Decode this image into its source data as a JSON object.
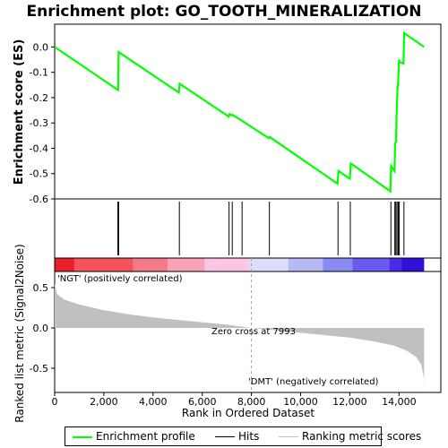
{
  "chart_data": {
    "type": "line",
    "title": "Enrichment plot: GO_TOOTH_MINERALIZATION",
    "es_panel": {
      "ylabel": "Enrichment score (ES)",
      "ylim": [
        -0.6,
        0.09
      ],
      "yticks": [
        0.0,
        -0.1,
        -0.2,
        -0.3,
        -0.4,
        -0.5,
        -0.6
      ],
      "ytick_labels": [
        "0.0",
        "-0.1",
        "-0.2",
        "-0.3",
        "-0.4",
        "-0.5",
        "-0.6"
      ],
      "line_color": "#00ff00",
      "profile_x": [
        0,
        2580,
        2600,
        5050,
        5080,
        7080,
        7110,
        7200,
        7230,
        7600,
        8700,
        8740,
        11500,
        11540,
        12000,
        12040,
        13650,
        13680,
        13820,
        13840,
        13880,
        13900,
        13940,
        13960,
        14000,
        14030,
        14180,
        14210,
        15020
      ],
      "profile_y": [
        0.0,
        -0.17,
        -0.02,
        -0.18,
        -0.145,
        -0.275,
        -0.265,
        -0.27,
        -0.268,
        -0.29,
        -0.36,
        -0.355,
        -0.54,
        -0.49,
        -0.52,
        -0.46,
        -0.57,
        -0.47,
        -0.49,
        -0.38,
        -0.375,
        -0.27,
        -0.16,
        -0.155,
        -0.05,
        -0.06,
        -0.065,
        0.055,
        0.0
      ]
    },
    "hits_panel": {
      "hit_positions": [
        2570,
        2600,
        5070,
        7090,
        7220,
        7620,
        8730,
        11520,
        12020,
        13670,
        13830,
        13870,
        13920,
        13970,
        14010,
        14200
      ]
    },
    "metric_panel": {
      "ylabel": "Ranked list metric (Signal2Noise)",
      "xlabel": "Rank in Ordered Dataset",
      "ylim": [
        -0.8,
        0.7
      ],
      "yticks": [
        0.5,
        0.0,
        -0.5
      ],
      "ytick_labels": [
        "0.5",
        "0.0",
        "-0.5"
      ],
      "xticks": [
        0,
        2000,
        4000,
        6000,
        8000,
        10000,
        12000,
        14000
      ],
      "xtick_labels": [
        "0",
        "2,000",
        "4,000",
        "6,000",
        "8,000",
        "10,000",
        "12,000",
        "14,000"
      ],
      "xlim": [
        0,
        15700
      ],
      "n_genes": 15020,
      "zero_cross": 7993,
      "zero_cross_label": "Zero cross at 7993",
      "pos_label": "'NGT' (positively correlated)",
      "neg_label": "'DMT' (negatively correlated)",
      "pos_label_color": "#ff0000",
      "neg_label_color": "#0000ff",
      "fill_color": "#c0c0c0",
      "metric_curve": [
        [
          0,
          0.55
        ],
        [
          100,
          0.42
        ],
        [
          400,
          0.35
        ],
        [
          1000,
          0.29
        ],
        [
          2000,
          0.22
        ],
        [
          3000,
          0.17
        ],
        [
          4000,
          0.13
        ],
        [
          5000,
          0.1
        ],
        [
          6000,
          0.07
        ],
        [
          7000,
          0.04
        ],
        [
          7993,
          0.0
        ],
        [
          9000,
          -0.03
        ],
        [
          10000,
          -0.06
        ],
        [
          11000,
          -0.09
        ],
        [
          12000,
          -0.12
        ],
        [
          13000,
          -0.17
        ],
        [
          13800,
          -0.22
        ],
        [
          14300,
          -0.28
        ],
        [
          14700,
          -0.36
        ],
        [
          14900,
          -0.45
        ],
        [
          15000,
          -0.6
        ],
        [
          15020,
          -0.75
        ]
      ]
    },
    "colorbar": [
      {
        "from": 0,
        "to": 800,
        "color": "#e8202a"
      },
      {
        "from": 800,
        "to": 3200,
        "color": "#f4535c"
      },
      {
        "from": 3200,
        "to": 4600,
        "color": "#f47a8a"
      },
      {
        "from": 4600,
        "to": 6100,
        "color": "#f8a2b8"
      },
      {
        "from": 6100,
        "to": 7900,
        "color": "#fcc6e4"
      },
      {
        "from": 7900,
        "to": 9500,
        "color": "#dcdcfc"
      },
      {
        "from": 9500,
        "to": 10900,
        "color": "#b8b8f4"
      },
      {
        "from": 10900,
        "to": 12100,
        "color": "#8a8af4"
      },
      {
        "from": 12100,
        "to": 13600,
        "color": "#6a5af0"
      },
      {
        "from": 13600,
        "to": 14100,
        "color": "#4a2ae4"
      },
      {
        "from": 14100,
        "to": 15020,
        "color": "#3010d8"
      }
    ],
    "legend": [
      {
        "label": "Enrichment profile",
        "color": "#00ff00"
      },
      {
        "label": "Hits",
        "color": "#000000"
      },
      {
        "label": "Ranking metric scores",
        "color": "#c0c0c0"
      }
    ]
  }
}
